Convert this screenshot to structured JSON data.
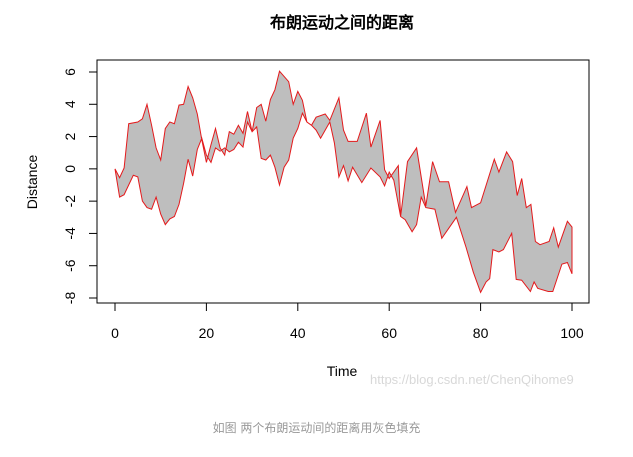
{
  "chart_data": {
    "type": "area",
    "title": "布朗运动之间的距离",
    "xlabel": "Time",
    "ylabel": "Distance",
    "xlim": [
      0,
      100
    ],
    "ylim": [
      -8,
      6
    ],
    "x_ticks": [
      "0",
      "20",
      "40",
      "60",
      "80",
      "100"
    ],
    "y_ticks": [
      "-8",
      "-6",
      "-4",
      "-2",
      "0",
      "2",
      "4",
      "6"
    ],
    "grid": false,
    "line_color": "#e41a1c",
    "fill_color": "#bebebe",
    "series": [
      {
        "x": [
          0,
          1,
          2,
          3,
          5,
          6,
          7,
          8,
          9,
          10,
          11,
          12,
          13,
          14,
          15,
          16,
          17,
          18,
          19,
          20,
          21,
          22,
          23,
          24,
          25,
          26,
          27,
          28,
          29,
          30,
          31,
          32,
          33,
          34,
          35,
          36,
          38,
          39,
          40,
          41,
          42,
          43,
          44,
          46,
          47,
          49,
          50,
          51,
          53,
          55,
          56,
          58,
          59,
          60,
          62,
          62.5,
          64,
          66,
          68,
          69.5,
          71,
          73,
          74.5,
          77,
          78,
          80,
          83,
          84,
          85.7,
          87,
          88,
          89,
          90,
          91,
          92,
          93,
          95,
          96,
          97,
          99,
          100
        ],
        "y": [
          0,
          -0.55,
          0.05,
          2.8,
          2.9,
          3.1,
          4.0,
          2.7,
          1.3,
          0.55,
          2.5,
          2.9,
          2.8,
          3.95,
          4.0,
          5.1,
          4.4,
          3.4,
          1.8,
          0.4,
          1.5,
          2.5,
          1.3,
          0.85,
          2.3,
          2.15,
          2.7,
          2.2,
          3.55,
          2.3,
          3.8,
          4.0,
          2.95,
          4.3,
          4.9,
          6.05,
          5.4,
          4.0,
          4.8,
          4.25,
          2.9,
          2.7,
          3.2,
          3.4,
          3.0,
          4.4,
          2.4,
          1.7,
          1.7,
          3.45,
          1.35,
          3.0,
          -0.05,
          -0.6,
          0.2,
          -2.95,
          0.45,
          1.3,
          -2.3,
          0.45,
          -0.8,
          -0.8,
          -2.7,
          -1.1,
          -2.4,
          -2.1,
          0.6,
          -0.2,
          1.05,
          0.45,
          -1.65,
          -0.6,
          -2.4,
          -2.2,
          -4.5,
          -4.7,
          -4.5,
          -3.65,
          -4.85,
          -3.25,
          -3.6
        ]
      },
      {
        "x": [
          0,
          1,
          2,
          4,
          5,
          6,
          7,
          8,
          9,
          10,
          11,
          12,
          13,
          14,
          15,
          16,
          17,
          18,
          19,
          20,
          21,
          22,
          23,
          24,
          25,
          26,
          27,
          28,
          29,
          30,
          31,
          32,
          33,
          34,
          35,
          36,
          37,
          38,
          39,
          40,
          41,
          42,
          43,
          44,
          45,
          46,
          47,
          48,
          49,
          50,
          51,
          52,
          54,
          56,
          58,
          59,
          60,
          61,
          62.5,
          63.5,
          65,
          66,
          67,
          68,
          70,
          71.5,
          74.7,
          76.8,
          78.4,
          80,
          81.2,
          82,
          82.7,
          84,
          85,
          86.8,
          87.8,
          89,
          90.9,
          91.7,
          92.5,
          94.8,
          95.8,
          97.8,
          99,
          100
        ],
        "y": [
          0,
          -1.75,
          -1.6,
          -0.4,
          -0.5,
          -2.0,
          -2.4,
          -2.5,
          -1.75,
          -2.8,
          -3.45,
          -3.1,
          -2.95,
          -2.2,
          -0.9,
          0.6,
          -0.45,
          1.2,
          1.9,
          0.85,
          0.4,
          1.3,
          1.1,
          1.3,
          1.05,
          1.2,
          1.65,
          1.35,
          2.9,
          2.3,
          2.6,
          0.65,
          0.55,
          0.85,
          0.1,
          -1.0,
          0.1,
          0.55,
          1.9,
          2.5,
          3.45,
          2.9,
          2.7,
          2.4,
          1.9,
          2.4,
          2.9,
          1.6,
          -0.5,
          0.2,
          -0.75,
          0.1,
          -0.85,
          0.05,
          -0.5,
          -1.05,
          -0.2,
          -0.7,
          -2.95,
          -3.15,
          -3.9,
          -3.45,
          -1.75,
          -2.4,
          -2.5,
          -4.3,
          -3.0,
          -4.85,
          -6.4,
          -7.65,
          -7.0,
          -6.8,
          -5.0,
          -5.15,
          -5.0,
          -4.0,
          -6.85,
          -6.9,
          -7.6,
          -7.0,
          -7.4,
          -7.6,
          -7.6,
          -5.9,
          -5.8,
          -6.5
        ]
      }
    ]
  },
  "watermark": "https://blog.csdn.net/ChenQihome9",
  "caption": "如图 两个布朗运动间的距离用灰色填充"
}
